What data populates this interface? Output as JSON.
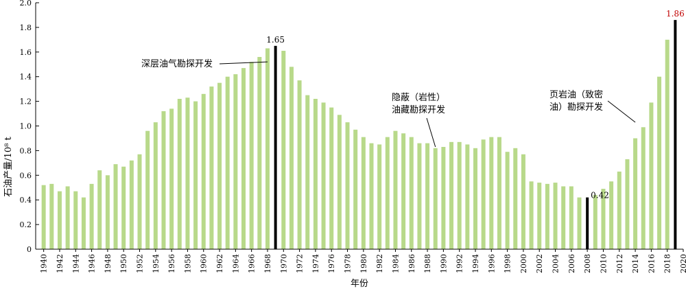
{
  "chart_data": {
    "type": "bar",
    "title": "",
    "xlabel": "年份",
    "ylabel": "石油产量/10⁸ t",
    "ylim": [
      0,
      2.0
    ],
    "yticks": [
      "0",
      "0.2",
      "0.4",
      "0.6",
      "0.8",
      "1.0",
      "1.2",
      "1.4",
      "1.6",
      "1.8",
      "2.0"
    ],
    "xtick_labels": [
      "1940",
      "1942",
      "1944",
      "1946",
      "1948",
      "1950",
      "1952",
      "1954",
      "1956",
      "1958",
      "1960",
      "1962",
      "1964",
      "1966",
      "1968",
      "1970",
      "1972",
      "1974",
      "1976",
      "1978",
      "1980",
      "1982",
      "1984",
      "1986",
      "1988",
      "1990",
      "1992",
      "1994",
      "1996",
      "1998",
      "2000",
      "2002",
      "2004",
      "2006",
      "2008",
      "2010",
      "2012",
      "2014",
      "2016",
      "2018",
      "2020"
    ],
    "grid": false,
    "colors": {
      "bar": "#b8d98a",
      "highlight": "#000000",
      "peak_label": "#c00000"
    },
    "categories": [
      1940,
      1941,
      1942,
      1943,
      1944,
      1945,
      1946,
      1947,
      1948,
      1949,
      1950,
      1951,
      1952,
      1953,
      1954,
      1955,
      1956,
      1957,
      1958,
      1959,
      1960,
      1961,
      1962,
      1963,
      1964,
      1965,
      1966,
      1967,
      1968,
      1969,
      1970,
      1971,
      1972,
      1973,
      1974,
      1975,
      1976,
      1977,
      1978,
      1979,
      1980,
      1981,
      1982,
      1983,
      1984,
      1985,
      1986,
      1987,
      1988,
      1989,
      1990,
      1991,
      1992,
      1993,
      1994,
      1995,
      1996,
      1997,
      1998,
      1999,
      2000,
      2001,
      2002,
      2003,
      2004,
      2005,
      2006,
      2007,
      2008,
      2009,
      2010,
      2011,
      2012,
      2013,
      2014,
      2015,
      2016,
      2017,
      2018,
      2019
    ],
    "values": [
      0.52,
      0.53,
      0.47,
      0.51,
      0.47,
      0.42,
      0.53,
      0.64,
      0.6,
      0.69,
      0.67,
      0.72,
      0.77,
      0.96,
      1.03,
      1.12,
      1.14,
      1.22,
      1.23,
      1.2,
      1.26,
      1.32,
      1.35,
      1.4,
      1.42,
      1.47,
      1.52,
      1.56,
      1.63,
      1.65,
      1.61,
      1.48,
      1.37,
      1.25,
      1.22,
      1.19,
      1.15,
      1.09,
      1.03,
      0.97,
      0.91,
      0.86,
      0.85,
      0.91,
      0.96,
      0.94,
      0.91,
      0.86,
      0.86,
      0.82,
      0.83,
      0.87,
      0.87,
      0.85,
      0.82,
      0.89,
      0.91,
      0.91,
      0.79,
      0.82,
      0.77,
      0.55,
      0.54,
      0.53,
      0.54,
      0.51,
      0.51,
      0.42,
      0.42,
      0.44,
      0.49,
      0.55,
      0.63,
      0.73,
      0.9,
      0.99,
      1.19,
      1.4,
      1.7,
      1.86
    ],
    "highlights": [
      {
        "year": 1969,
        "value": 1.65,
        "label": "1.65",
        "label_color": "#000000"
      },
      {
        "year": 2008,
        "value": 0.42,
        "label": "0.42",
        "label_color": "#000000"
      },
      {
        "year": 2019,
        "value": 1.86,
        "label": "1.86",
        "label_color": "#c00000"
      }
    ],
    "annotations": [
      {
        "lines": [
          "深层油气勘探开发"
        ],
        "target_year": 1968,
        "target_value": 1.52
      },
      {
        "lines": [
          "隐蔽（岩性）",
          "油藏勘探开发"
        ],
        "target_year": 1989,
        "target_value": 0.83
      },
      {
        "lines": [
          "页岩油（致密",
          "油）勘探开发"
        ],
        "target_year": 2014,
        "target_value": 1.03
      }
    ]
  }
}
